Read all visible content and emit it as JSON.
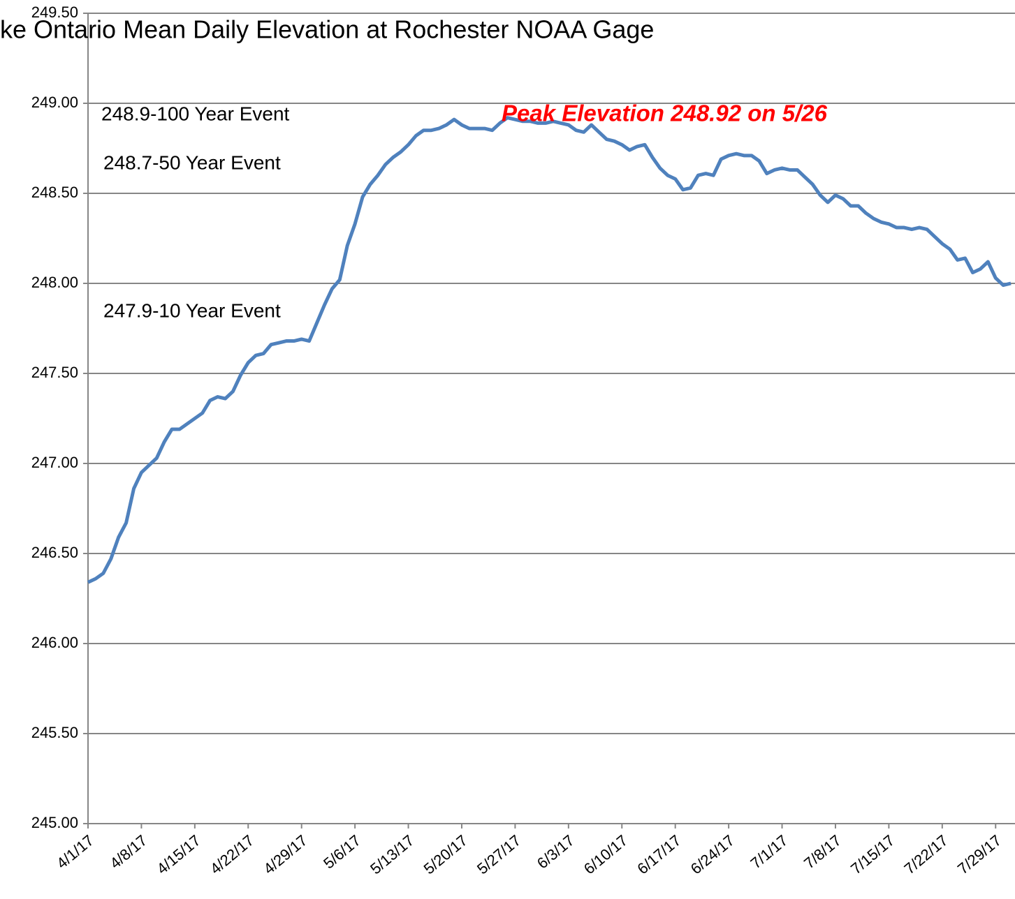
{
  "chart_data": {
    "type": "line",
    "title": "ke Ontario Mean Daily Elevation at Rochester NOAA Gage",
    "annotations": [
      "248.9-100 Year Event",
      "248.7-50 Year Event",
      "247.9-10 Year Event",
      "Peak Elevation 248.92 on 5/26"
    ],
    "x": [
      "4/1/17",
      "4/2/17",
      "4/3/17",
      "4/4/17",
      "4/5/17",
      "4/6/17",
      "4/7/17",
      "4/8/17",
      "4/9/17",
      "4/10/17",
      "4/11/17",
      "4/12/17",
      "4/13/17",
      "4/14/17",
      "4/15/17",
      "4/16/17",
      "4/17/17",
      "4/18/17",
      "4/19/17",
      "4/20/17",
      "4/21/17",
      "4/22/17",
      "4/23/17",
      "4/24/17",
      "4/25/17",
      "4/26/17",
      "4/27/17",
      "4/28/17",
      "4/29/17",
      "4/30/17",
      "5/1/17",
      "5/2/17",
      "5/3/17",
      "5/4/17",
      "5/5/17",
      "5/6/17",
      "5/7/17",
      "5/8/17",
      "5/9/17",
      "5/10/17",
      "5/11/17",
      "5/12/17",
      "5/13/17",
      "5/14/17",
      "5/15/17",
      "5/16/17",
      "5/17/17",
      "5/18/17",
      "5/19/17",
      "5/20/17",
      "5/21/17",
      "5/22/17",
      "5/23/17",
      "5/24/17",
      "5/25/17",
      "5/26/17",
      "5/27/17",
      "5/28/17",
      "5/29/17",
      "5/30/17",
      "5/31/17",
      "6/1/17",
      "6/2/17",
      "6/3/17",
      "6/4/17",
      "6/5/17",
      "6/6/17",
      "6/7/17",
      "6/8/17",
      "6/9/17",
      "6/10/17",
      "6/11/17",
      "6/12/17",
      "6/13/17",
      "6/14/17",
      "6/15/17",
      "6/16/17",
      "6/17/17",
      "6/18/17",
      "6/19/17",
      "6/20/17",
      "6/21/17",
      "6/22/17",
      "6/23/17",
      "6/24/17",
      "6/25/17",
      "6/26/17",
      "6/27/17",
      "6/28/17",
      "6/29/17",
      "6/30/17",
      "7/1/17",
      "7/2/17",
      "7/3/17",
      "7/4/17",
      "7/5/17",
      "7/6/17",
      "7/7/17",
      "7/8/17",
      "7/9/17",
      "7/10/17",
      "7/11/17",
      "7/12/17",
      "7/13/17",
      "7/14/17",
      "7/15/17",
      "7/16/17",
      "7/17/17",
      "7/18/17",
      "7/19/17",
      "7/20/17",
      "7/21/17",
      "7/22/17",
      "7/23/17",
      "7/24/17",
      "7/25/17",
      "7/26/17",
      "7/27/17",
      "7/28/17",
      "7/29/17",
      "7/30/17",
      "7/31/17"
    ],
    "series": [
      {
        "name": "Elevation",
        "color": "#4f81bd",
        "values": [
          246.34,
          246.36,
          246.39,
          246.47,
          246.59,
          246.67,
          246.86,
          246.95,
          246.99,
          247.03,
          247.12,
          247.19,
          247.19,
          247.22,
          247.25,
          247.28,
          247.35,
          247.37,
          247.36,
          247.4,
          247.49,
          247.56,
          247.6,
          247.61,
          247.66,
          247.67,
          247.68,
          247.68,
          247.69,
          247.68,
          247.78,
          247.88,
          247.97,
          248.02,
          248.21,
          248.33,
          248.48,
          248.55,
          248.6,
          248.66,
          248.7,
          248.73,
          248.77,
          248.82,
          248.85,
          248.85,
          248.86,
          248.88,
          248.91,
          248.88,
          248.86,
          248.86,
          248.86,
          248.85,
          248.89,
          248.92,
          248.91,
          248.9,
          248.9,
          248.89,
          248.89,
          248.9,
          248.89,
          248.88,
          248.85,
          248.84,
          248.88,
          248.84,
          248.8,
          248.79,
          248.77,
          248.74,
          248.76,
          248.77,
          248.7,
          248.64,
          248.6,
          248.58,
          248.52,
          248.53,
          248.6,
          248.61,
          248.6,
          248.69,
          248.71,
          248.72,
          248.71,
          248.71,
          248.68,
          248.61,
          248.63,
          248.64,
          248.63,
          248.63,
          248.59,
          248.55,
          248.49,
          248.45,
          248.49,
          248.47,
          248.43,
          248.43,
          248.39,
          248.36,
          248.34,
          248.33,
          248.31,
          248.31,
          248.3,
          248.31,
          248.3,
          248.26,
          248.22,
          248.19,
          248.13,
          248.14,
          248.06,
          248.08,
          248.12,
          248.03,
          247.99,
          248.0
        ]
      }
    ],
    "xlim": [
      "4/1/17",
      "8/1/17"
    ],
    "xticks": [
      "4/1/17",
      "4/8/17",
      "4/15/17",
      "4/22/17",
      "4/29/17",
      "5/6/17",
      "5/13/17",
      "5/20/17",
      "5/27/17",
      "6/3/17",
      "6/10/17",
      "6/17/17",
      "6/24/17",
      "7/1/17",
      "7/8/17",
      "7/15/17",
      "7/22/17",
      "7/29/17"
    ],
    "ylim": [
      245,
      249.5
    ],
    "yticks": [
      {
        "value": 245,
        "label": "245.00"
      },
      {
        "value": 245.5,
        "label": "245.50"
      },
      {
        "value": 246,
        "label": "246.00"
      },
      {
        "value": 246.5,
        "label": "246.50"
      },
      {
        "value": 247,
        "label": "247.00"
      },
      {
        "value": 247.5,
        "label": "247.50"
      },
      {
        "value": 248,
        "label": "248.00"
      },
      {
        "value": 248.5,
        "label": "248.50"
      },
      {
        "value": 249,
        "label": "249.00"
      },
      {
        "value": 249.5,
        "label": "249.50"
      }
    ],
    "grid": true
  }
}
